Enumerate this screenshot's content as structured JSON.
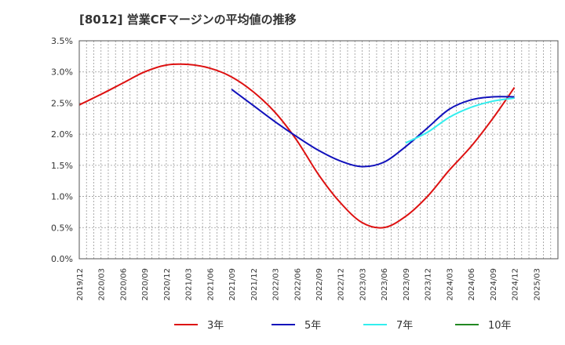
{
  "chart_data": {
    "type": "line",
    "title": "[8012]  営業CFマージンの平均値の推移",
    "xlabel": "",
    "ylabel": "",
    "ylim": [
      0,
      3.5
    ],
    "grid": true,
    "legend_position": "bottom",
    "y_ticks": [
      "0.0%",
      "0.5%",
      "1.0%",
      "1.5%",
      "2.0%",
      "2.5%",
      "3.0%",
      "3.5%"
    ],
    "x_ticks": [
      "2019/12",
      "2020/03",
      "2020/06",
      "2020/09",
      "2020/12",
      "2021/03",
      "2021/06",
      "2021/09",
      "2021/12",
      "2022/03",
      "2022/06",
      "2022/09",
      "2022/12",
      "2023/03",
      "2023/06",
      "2023/09",
      "2023/12",
      "2024/03",
      "2024/06",
      "2024/09",
      "2024/12",
      "2025/03"
    ],
    "series": [
      {
        "name": "3年",
        "color": "#dd1111",
        "x": [
          "2019/12",
          "2020/03",
          "2020/06",
          "2020/09",
          "2020/12",
          "2021/03",
          "2021/06",
          "2021/09",
          "2021/12",
          "2022/03",
          "2022/06",
          "2022/09",
          "2022/12",
          "2023/03",
          "2023/06",
          "2023/09",
          "2023/12",
          "2024/03",
          "2024/06",
          "2024/09",
          "2024/12"
        ],
        "values": [
          2.47,
          2.64,
          2.82,
          3.0,
          3.11,
          3.12,
          3.06,
          2.92,
          2.68,
          2.35,
          1.9,
          1.35,
          0.9,
          0.58,
          0.5,
          0.68,
          1.0,
          1.42,
          1.8,
          2.25,
          2.75
        ]
      },
      {
        "name": "5年",
        "color": "#1111bb",
        "x": [
          "2021/09",
          "2021/12",
          "2022/03",
          "2022/06",
          "2022/09",
          "2022/12",
          "2023/03",
          "2023/06",
          "2023/09",
          "2023/12",
          "2024/03",
          "2024/06",
          "2024/09",
          "2024/12"
        ],
        "values": [
          2.72,
          2.46,
          2.2,
          1.96,
          1.74,
          1.57,
          1.48,
          1.55,
          1.8,
          2.1,
          2.4,
          2.55,
          2.6,
          2.6
        ]
      },
      {
        "name": "7年",
        "color": "#33eeee",
        "x": [
          "2023/09",
          "2023/12",
          "2024/03",
          "2024/06",
          "2024/09",
          "2024/12"
        ],
        "values": [
          1.86,
          2.03,
          2.27,
          2.43,
          2.53,
          2.58
        ]
      },
      {
        "name": "10年",
        "color": "#228822",
        "x": [],
        "values": []
      }
    ]
  }
}
